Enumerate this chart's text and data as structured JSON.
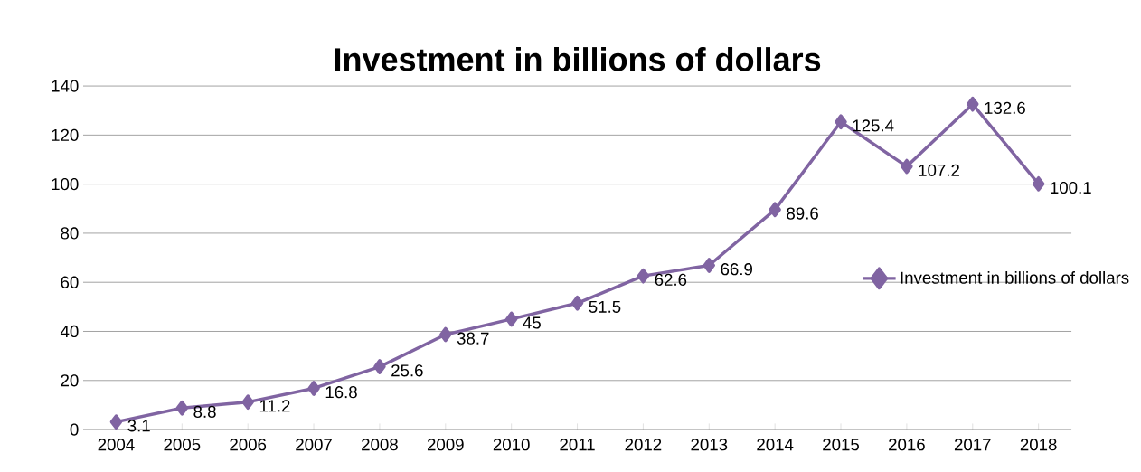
{
  "chart_data": {
    "type": "line",
    "title": "Investment in billions of dollars",
    "categories": [
      "2004",
      "2005",
      "2006",
      "2007",
      "2008",
      "2009",
      "2010",
      "2011",
      "2012",
      "2013",
      "2014",
      "2015",
      "2016",
      "2017",
      "2018"
    ],
    "series": [
      {
        "name": "Investment in billions of dollars",
        "color": "#8064a2",
        "values": [
          3.1,
          8.8,
          11.2,
          16.8,
          25.6,
          38.7,
          45,
          51.5,
          62.6,
          66.9,
          89.6,
          125.4,
          107.2,
          132.6,
          100.1
        ]
      }
    ],
    "ylim": [
      0,
      140
    ],
    "yticks": [
      0,
      20,
      40,
      60,
      80,
      100,
      120,
      140
    ],
    "grid": "y",
    "legend": "right",
    "marker": "diamond",
    "line_style": "solid",
    "data_labels": true
  }
}
